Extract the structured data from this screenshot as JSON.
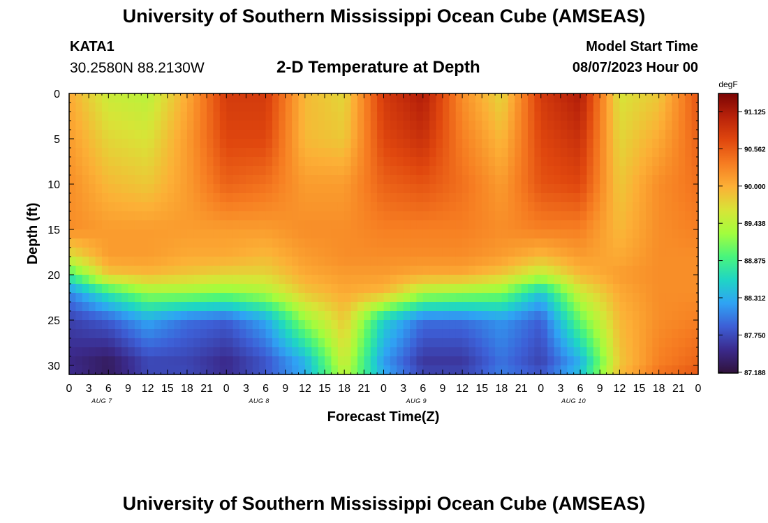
{
  "header": {
    "title": "University of Southern Mississippi Ocean Cube (AMSEAS)",
    "station_id": "KATA1",
    "station_location": "30.2580N  88.2130W",
    "plot_title": "2-D Temperature at Depth",
    "start_label": "Model Start Time",
    "start_value": "08/07/2023 Hour 00"
  },
  "footer": {
    "title": "University of Southern Mississippi Ocean Cube (AMSEAS)"
  },
  "chart_data": {
    "type": "heatmap",
    "xlabel": "Forecast Time(Z)",
    "ylabel": "Depth (ft)",
    "xlim": [
      0,
      96
    ],
    "ylim": [
      31,
      0
    ],
    "x_tick_labels": [
      "0",
      "3",
      "6",
      "9",
      "12",
      "15",
      "18",
      "21",
      "0",
      "3",
      "6",
      "9",
      "12",
      "15",
      "18",
      "21",
      "0",
      "3",
      "6",
      "9",
      "12",
      "15",
      "18",
      "21",
      "0",
      "3",
      "6",
      "9",
      "12",
      "15",
      "18",
      "21",
      "0"
    ],
    "day_labels": [
      "AUG 7",
      "AUG 8",
      "AUG 9",
      "AUG 10"
    ],
    "y_ticks": [
      0,
      5,
      10,
      15,
      20,
      25,
      30
    ],
    "colorbar": {
      "units": "degF",
      "tick_labels": [
        "91.125",
        "90.562",
        "90.000",
        "89.438",
        "88.875",
        "88.312",
        "87.750",
        "87.188"
      ],
      "min": 87.188,
      "max": 91.5,
      "stops": [
        "#30123b",
        "#3b2a8c",
        "#3d5fd6",
        "#2fa3f4",
        "#1fd5c5",
        "#49f57c",
        "#a3fd3d",
        "#d8e437",
        "#fcb036",
        "#f67c21",
        "#e0470e",
        "#b8220a",
        "#7a0403"
      ]
    },
    "depths_ft": [
      0,
      5,
      10,
      15,
      18,
      20,
      22,
      25,
      30,
      31
    ],
    "hours": [
      0,
      6,
      12,
      18,
      24,
      30,
      36,
      42,
      48,
      54,
      60,
      66,
      72,
      78,
      84,
      90,
      96
    ],
    "values": [
      [
        90.1,
        89.6,
        89.5,
        90.1,
        90.9,
        90.9,
        90.0,
        89.8,
        90.9,
        91.2,
        90.3,
        89.8,
        90.9,
        91.2,
        89.7,
        89.9,
        90.7
      ],
      [
        90.2,
        89.8,
        89.7,
        90.2,
        90.8,
        90.8,
        90.0,
        89.9,
        90.8,
        91.0,
        90.4,
        90.0,
        90.8,
        91.0,
        89.8,
        90.1,
        90.6
      ],
      [
        90.3,
        90.0,
        89.9,
        90.2,
        90.6,
        90.5,
        90.2,
        90.2,
        90.6,
        90.7,
        90.5,
        90.2,
        90.7,
        90.8,
        89.9,
        90.3,
        90.5
      ],
      [
        90.3,
        90.2,
        90.2,
        90.2,
        90.2,
        90.2,
        90.3,
        90.3,
        90.4,
        90.4,
        90.4,
        90.3,
        90.4,
        90.4,
        90.0,
        90.3,
        90.4
      ],
      [
        89.7,
        90.2,
        90.2,
        90.1,
        90.1,
        90.0,
        90.2,
        90.3,
        90.3,
        90.3,
        90.3,
        90.2,
        90.0,
        90.2,
        90.1,
        90.3,
        90.3
      ],
      [
        88.9,
        89.9,
        90.0,
        89.9,
        89.8,
        89.8,
        90.1,
        90.2,
        90.2,
        90.1,
        90.1,
        89.9,
        89.5,
        90.0,
        90.2,
        90.3,
        90.3
      ],
      [
        88.1,
        88.8,
        89.3,
        89.3,
        89.2,
        89.4,
        89.9,
        90.1,
        90.0,
        89.4,
        89.3,
        89.2,
        88.5,
        89.6,
        90.1,
        90.3,
        90.3
      ],
      [
        87.7,
        87.9,
        88.3,
        88.0,
        87.9,
        88.3,
        89.3,
        89.9,
        88.6,
        88.0,
        88.0,
        88.2,
        87.9,
        89.1,
        90.0,
        90.3,
        90.4
      ],
      [
        87.5,
        87.3,
        87.7,
        87.7,
        87.5,
        87.8,
        88.3,
        89.6,
        88.2,
        87.6,
        87.6,
        88.0,
        87.7,
        88.3,
        89.9,
        90.4,
        90.6
      ],
      [
        87.6,
        87.4,
        87.8,
        87.8,
        87.6,
        87.9,
        88.4,
        89.5,
        88.4,
        87.8,
        87.8,
        88.1,
        87.9,
        88.6,
        90.0,
        90.5,
        90.7
      ]
    ]
  }
}
